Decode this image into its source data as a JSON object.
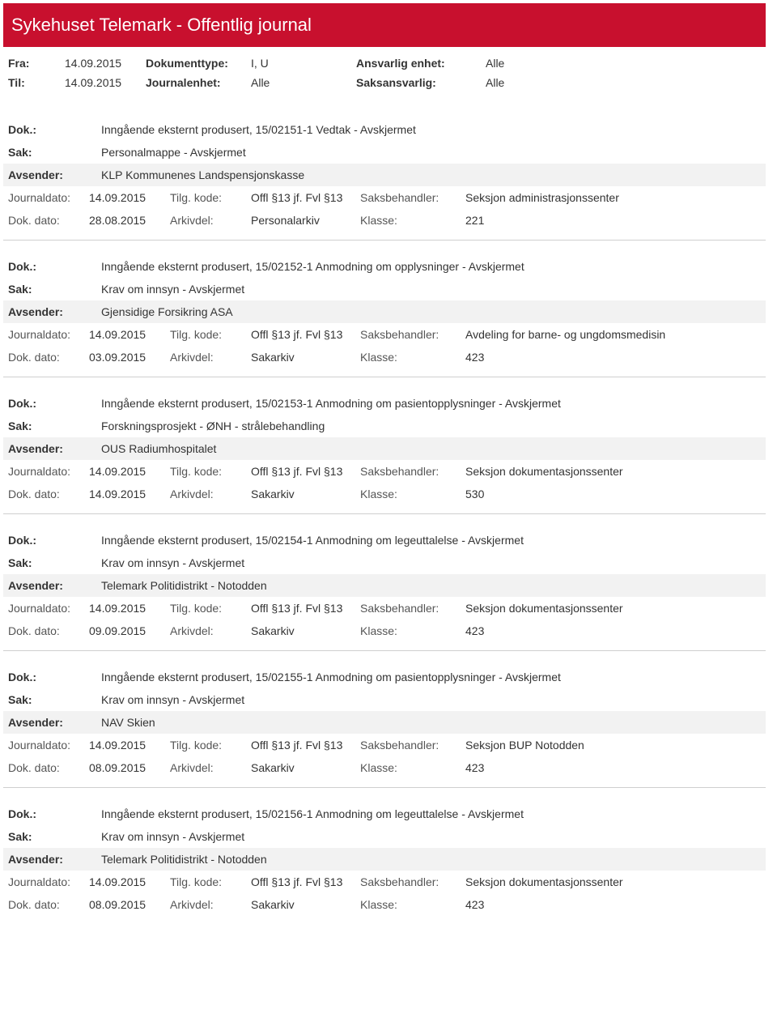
{
  "header": {
    "title": "Sykehuset Telemark - Offentlig journal"
  },
  "meta": {
    "fra_label": "Fra:",
    "fra_value": "14.09.2015",
    "til_label": "Til:",
    "til_value": "14.09.2015",
    "doktype_label": "Dokumenttype:",
    "doktype_value": "I, U",
    "journalenhet_label": "Journalenhet:",
    "journalenhet_value": "Alle",
    "ansvarlig_label": "Ansvarlig enhet:",
    "ansvarlig_value": "Alle",
    "saksansvarlig_label": "Saksansvarlig:",
    "saksansvarlig_value": "Alle"
  },
  "labels": {
    "dok": "Dok.:",
    "sak": "Sak:",
    "avsender": "Avsender:",
    "journaldato": "Journaldato:",
    "dokdato": "Dok. dato:",
    "tilgkode": "Tilg. kode:",
    "arkivdel": "Arkivdel:",
    "saksbehandler": "Saksbehandler:",
    "klasse": "Klasse:"
  },
  "entries": [
    {
      "dok": "Inngående eksternt produsert, 15/02151-1 Vedtak - Avskjermet",
      "sak": "Personalmappe - Avskjermet",
      "avsender": "KLP Kommunenes Landspensjonskasse",
      "journaldato": "14.09.2015",
      "tilgkode": "Offl §13 jf. Fvl §13",
      "saksbehandler": "Seksjon administrasjonssenter",
      "dokdato": "28.08.2015",
      "arkivdel": "Personalarkiv",
      "klasse": "221"
    },
    {
      "dok": "Inngående eksternt produsert, 15/02152-1 Anmodning om opplysninger - Avskjermet",
      "sak": "Krav om innsyn - Avskjermet",
      "avsender": "Gjensidige Forsikring ASA",
      "journaldato": "14.09.2015",
      "tilgkode": "Offl §13 jf. Fvl §13",
      "saksbehandler": "Avdeling for barne- og ungdomsmedisin",
      "dokdato": "03.09.2015",
      "arkivdel": "Sakarkiv",
      "klasse": "423"
    },
    {
      "dok": "Inngående eksternt produsert, 15/02153-1 Anmodning om pasientopplysninger - Avskjermet",
      "sak": "Forskningsprosjekt - ØNH - strålebehandling",
      "avsender": "OUS Radiumhospitalet",
      "journaldato": "14.09.2015",
      "tilgkode": "Offl §13 jf. Fvl §13",
      "saksbehandler": "Seksjon dokumentasjonssenter",
      "dokdato": "14.09.2015",
      "arkivdel": "Sakarkiv",
      "klasse": "530"
    },
    {
      "dok": "Inngående eksternt produsert, 15/02154-1 Anmodning om legeuttalelse - Avskjermet",
      "sak": "Krav om innsyn - Avskjermet",
      "avsender": "Telemark Politidistrikt - Notodden",
      "journaldato": "14.09.2015",
      "tilgkode": "Offl §13 jf. Fvl §13",
      "saksbehandler": "Seksjon dokumentasjonssenter",
      "dokdato": "09.09.2015",
      "arkivdel": "Sakarkiv",
      "klasse": "423"
    },
    {
      "dok": "Inngående eksternt produsert, 15/02155-1 Anmodning om pasientopplysninger - Avskjermet",
      "sak": "Krav om innsyn - Avskjermet",
      "avsender": "NAV Skien",
      "journaldato": "14.09.2015",
      "tilgkode": "Offl §13 jf. Fvl §13",
      "saksbehandler": "Seksjon BUP Notodden",
      "dokdato": "08.09.2015",
      "arkivdel": "Sakarkiv",
      "klasse": "423"
    },
    {
      "dok": "Inngående eksternt produsert, 15/02156-1 Anmodning om legeuttalelse - Avskjermet",
      "sak": "Krav om innsyn - Avskjermet",
      "avsender": "Telemark Politidistrikt - Notodden",
      "journaldato": "14.09.2015",
      "tilgkode": "Offl §13 jf. Fvl §13",
      "saksbehandler": "Seksjon dokumentasjonssenter",
      "dokdato": "08.09.2015",
      "arkivdel": "Sakarkiv",
      "klasse": "423"
    }
  ]
}
